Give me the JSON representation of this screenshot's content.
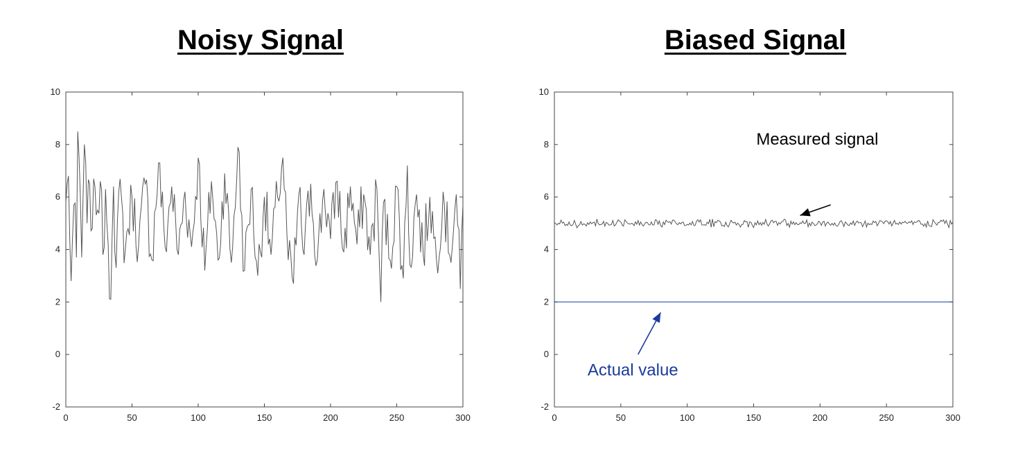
{
  "chart_data": [
    {
      "type": "line",
      "title": "Noisy Signal",
      "xlim": [
        0,
        300
      ],
      "ylim": [
        -2,
        10
      ],
      "xticks": [
        0,
        50,
        100,
        150,
        200,
        250,
        300
      ],
      "yticks": [
        -2,
        0,
        2,
        4,
        6,
        8,
        10
      ],
      "grid": false,
      "series": [
        {
          "color": "#555555",
          "mean": 5,
          "noise_amplitude": 1.0,
          "points": 301,
          "x": [
            0,
            2,
            4,
            6,
            8,
            9,
            10,
            12,
            14,
            16,
            18,
            20,
            22,
            24,
            26,
            28,
            30,
            32,
            34,
            35,
            36,
            38,
            40,
            45,
            50,
            55,
            60,
            65,
            70,
            75,
            80,
            85,
            90,
            95,
            100,
            105,
            110,
            115,
            120,
            125,
            130,
            135,
            140,
            145,
            150,
            155,
            160,
            164,
            168,
            172,
            176,
            180,
            185,
            190,
            195,
            200,
            205,
            210,
            215,
            220,
            225,
            230,
            235,
            238,
            240,
            245,
            250,
            255,
            258,
            260,
            265,
            270,
            275,
            280,
            285,
            290,
            295,
            298,
            300
          ],
          "y": [
            5.8,
            6.8,
            2.8,
            5.7,
            3.7,
            8.5,
            7.5,
            3.7,
            8.0,
            5.0,
            6.5,
            4.8,
            6.4,
            5.5,
            6.6,
            3.8,
            6.3,
            4.2,
            2.1,
            4.5,
            6.4,
            3.3,
            6.2,
            4.0,
            6.0,
            4.2,
            6.5,
            3.6,
            7.3,
            4.1,
            6.4,
            3.8,
            6.2,
            4.1,
            7.5,
            3.2,
            6.6,
            3.6,
            6.9,
            3.5,
            7.9,
            3.2,
            6.3,
            3.0,
            6.0,
            3.8,
            6.0,
            7.5,
            3.6,
            2.7,
            6.1,
            3.8,
            6.5,
            3.6,
            6.3,
            4.4,
            6.6,
            3.9,
            6.4,
            4.2,
            6.1,
            3.8,
            6.3,
            2.0,
            5.8,
            3.6,
            6.4,
            2.9,
            7.2,
            3.4,
            6.1,
            3.8,
            6.0,
            3.6,
            6.2,
            3.8,
            6.1,
            2.5,
            5.7
          ]
        }
      ]
    },
    {
      "type": "line",
      "title": "Biased Signal",
      "xlim": [
        0,
        300
      ],
      "ylim": [
        -2,
        10
      ],
      "xticks": [
        0,
        50,
        100,
        150,
        200,
        250,
        300
      ],
      "yticks": [
        -2,
        0,
        2,
        4,
        6,
        8,
        10
      ],
      "grid": false,
      "series": [
        {
          "color": "#555555",
          "mean": 5.0,
          "noise_amplitude": 0.12,
          "points": 301
        },
        {
          "color": "#1a3a9e",
          "x": [
            0,
            300
          ],
          "y": [
            2,
            2
          ]
        }
      ],
      "annotations": [
        {
          "text": "Measured signal",
          "color": "#000000",
          "text_at": [
            152,
            8
          ],
          "arrow_from": [
            208,
            5.7
          ],
          "arrow_to": [
            185,
            5.3
          ]
        },
        {
          "text": "Actual value",
          "color": "#1a3a9e",
          "text_at": [
            25,
            -0.8
          ],
          "arrow_from": [
            63,
            0
          ],
          "arrow_to": [
            80,
            1.6
          ]
        }
      ]
    }
  ]
}
